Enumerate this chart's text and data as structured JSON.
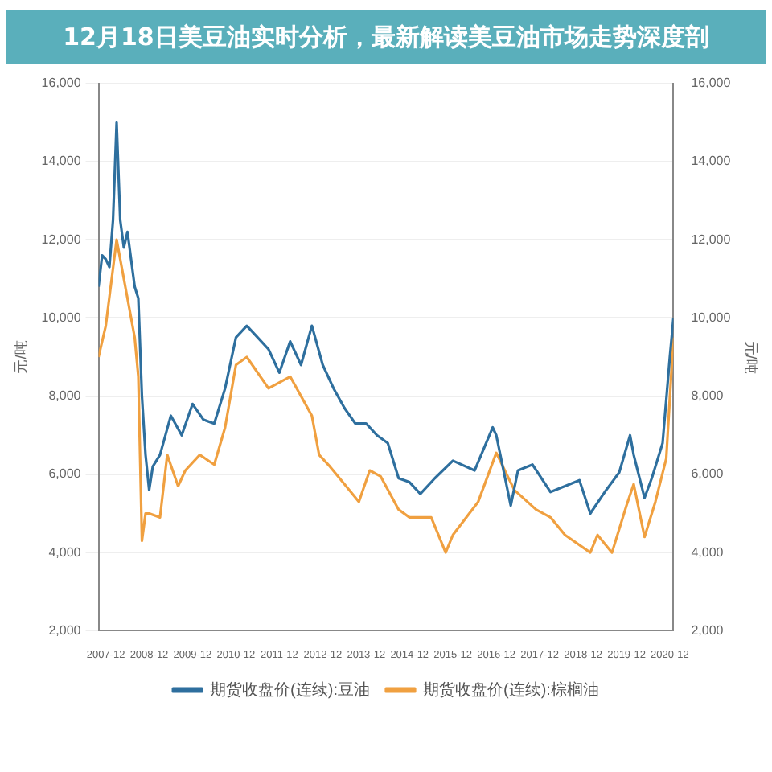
{
  "chart_data": {
    "type": "line",
    "title": "12月18日美豆油实时分析，最新解读美豆油市场走势深度剖",
    "ylabel": "元/吨",
    "y2label": "元/吨",
    "ylim": [
      2000,
      16000
    ],
    "yticks": [
      {
        "value": 2000,
        "label": "2,000"
      },
      {
        "value": 4000,
        "label": "4,000"
      },
      {
        "value": 6000,
        "label": "6,000"
      },
      {
        "value": 8000,
        "label": "8,000"
      },
      {
        "value": 10000,
        "label": "10,000"
      },
      {
        "value": 12000,
        "label": "12,000"
      },
      {
        "value": 14000,
        "label": "14,000"
      },
      {
        "value": 16000,
        "label": "16,000"
      }
    ],
    "y2lim": [
      2000,
      16000
    ],
    "y2ticks": [
      {
        "value": 2000,
        "label": "2,000"
      },
      {
        "value": 4000,
        "label": "4,000"
      },
      {
        "value": 6000,
        "label": "6,000"
      },
      {
        "value": 8000,
        "label": "8,000"
      },
      {
        "value": 10000,
        "label": "10,000"
      },
      {
        "value": 12000,
        "label": "12,000"
      },
      {
        "value": 14000,
        "label": "14,000"
      },
      {
        "value": 16000,
        "label": "16,000"
      }
    ],
    "xlim": [
      "2007-10",
      "2021-01"
    ],
    "xticks": [
      "2007-12",
      "2008-12",
      "2009-12",
      "2010-12",
      "2011-12",
      "2012-12",
      "2013-12",
      "2014-12",
      "2015-12",
      "2016-12",
      "2017-12",
      "2018-12",
      "2019-12",
      "2020-12"
    ],
    "grid": "y",
    "legend": "bottom",
    "marker": "none",
    "line_style": "solid",
    "series": [
      {
        "name": "期货收盘价(连续):豆油",
        "color": "#2e6f9e",
        "x": [
          "2007-10",
          "2007-11",
          "2007-12",
          "2008-01",
          "2008-02",
          "2008-03",
          "2008-04",
          "2008-05",
          "2008-06",
          "2008-07",
          "2008-08",
          "2008-09",
          "2008-10",
          "2008-11",
          "2008-12",
          "2009-01",
          "2009-03",
          "2009-06",
          "2009-09",
          "2009-12",
          "2010-03",
          "2010-06",
          "2010-09",
          "2010-12",
          "2011-03",
          "2011-06",
          "2011-09",
          "2011-12",
          "2012-03",
          "2012-06",
          "2012-09",
          "2012-12",
          "2013-03",
          "2013-06",
          "2013-09",
          "2013-12",
          "2014-03",
          "2014-06",
          "2014-09",
          "2014-12",
          "2015-03",
          "2015-07",
          "2015-12",
          "2016-06",
          "2016-11",
          "2016-12",
          "2017-04",
          "2017-06",
          "2017-10",
          "2018-03",
          "2018-07",
          "2018-11",
          "2019-02",
          "2019-06",
          "2019-10",
          "2020-01",
          "2020-02",
          "2020-05",
          "2020-07",
          "2020-10",
          "2020-12",
          "2021-01"
        ],
        "values": [
          10800,
          11600,
          11500,
          11300,
          12500,
          15000,
          12500,
          11800,
          12200,
          11500,
          10800,
          10500,
          8000,
          6500,
          5600,
          6200,
          6500,
          7500,
          7000,
          7800,
          7400,
          7300,
          8200,
          9500,
          9800,
          9500,
          9200,
          8600,
          9400,
          8800,
          9800,
          8800,
          8200,
          7700,
          7300,
          7300,
          7000,
          6800,
          5900,
          5800,
          5500,
          5900,
          6350,
          6100,
          7200,
          7000,
          5200,
          6100,
          6250,
          5550,
          5700,
          5850,
          5000,
          5550,
          6050,
          7000,
          6500,
          5400,
          5900,
          6800,
          9000,
          10000
        ]
      },
      {
        "name": "期货收盘价(连续):棕榈油",
        "color": "#f0a040",
        "x": [
          "2007-10",
          "2007-12",
          "2008-03",
          "2008-06",
          "2008-08",
          "2008-09",
          "2008-10",
          "2008-11",
          "2008-12",
          "2009-03",
          "2009-05",
          "2009-08",
          "2009-10",
          "2010-02",
          "2010-06",
          "2010-09",
          "2010-12",
          "2011-03",
          "2011-09",
          "2012-03",
          "2012-09",
          "2012-11",
          "2013-02",
          "2013-06",
          "2013-10",
          "2014-01",
          "2014-04",
          "2014-09",
          "2014-12",
          "2015-06",
          "2015-10",
          "2015-12",
          "2016-07",
          "2016-12",
          "2017-05",
          "2017-11",
          "2018-03",
          "2018-07",
          "2019-02",
          "2019-04",
          "2019-08",
          "2019-12",
          "2020-02",
          "2020-05",
          "2020-08",
          "2020-11",
          "2021-01"
        ],
        "values": [
          9000,
          9800,
          12000,
          10500,
          9500,
          8500,
          4300,
          5000,
          5000,
          4900,
          6500,
          5700,
          6100,
          6500,
          6250,
          7200,
          8800,
          9000,
          8200,
          8500,
          7500,
          6500,
          6200,
          5750,
          5300,
          6100,
          5950,
          5100,
          4900,
          4900,
          4000,
          4450,
          5300,
          6550,
          5600,
          5100,
          4900,
          4450,
          4000,
          4450,
          4000,
          5200,
          5750,
          4400,
          5300,
          6400,
          9500
        ]
      }
    ]
  }
}
